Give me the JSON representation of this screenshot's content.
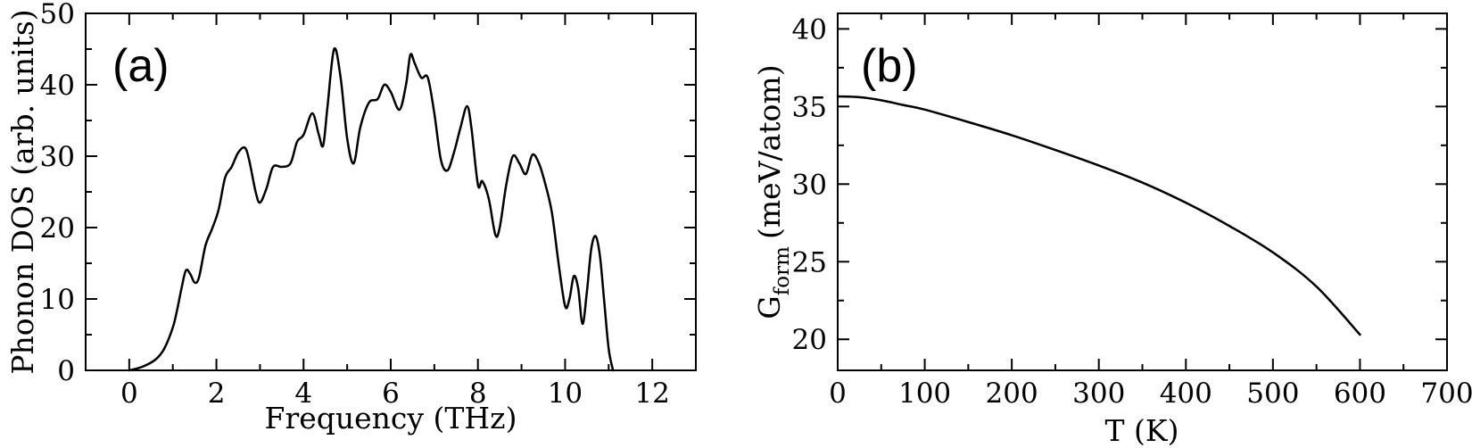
{
  "chart_data": [
    {
      "panel_label": "(a)",
      "type": "line",
      "xlabel": "Frequency (THz)",
      "ylabel": "Phonon DOS (arb. units)",
      "xlim": [
        -1,
        13
      ],
      "ylim": [
        0,
        50
      ],
      "x_ticks": [
        "0",
        "2",
        "4",
        "6",
        "8",
        "10",
        "12"
      ],
      "y_ticks": [
        "0",
        "10",
        "20",
        "30",
        "40",
        "50"
      ],
      "x_tick_values": [
        0,
        2,
        4,
        6,
        8,
        10,
        12
      ],
      "y_tick_values": [
        0,
        10,
        20,
        30,
        40,
        50
      ],
      "x_minor_step": 1,
      "y_minor_step": 5,
      "grid": false,
      "line_color": "#000000",
      "series": [
        {
          "x": [
            0.0,
            0.3,
            0.6,
            0.8,
            1.0,
            1.1,
            1.2,
            1.3,
            1.4,
            1.5,
            1.6,
            1.75,
            1.9,
            2.05,
            2.2,
            2.35,
            2.5,
            2.65,
            2.75,
            2.9,
            3.0,
            3.15,
            3.3,
            3.5,
            3.7,
            3.85,
            4.0,
            4.2,
            4.35,
            4.45,
            4.55,
            4.7,
            4.85,
            5.0,
            5.15,
            5.3,
            5.5,
            5.7,
            5.85,
            6.0,
            6.2,
            6.35,
            6.45,
            6.55,
            6.7,
            6.85,
            7.0,
            7.15,
            7.3,
            7.45,
            7.6,
            7.75,
            7.85,
            8.0,
            8.1,
            8.25,
            8.4,
            8.5,
            8.65,
            8.8,
            8.95,
            9.1,
            9.25,
            9.4,
            9.55,
            9.7,
            9.85,
            10.0,
            10.1,
            10.2,
            10.3,
            10.4,
            10.5,
            10.6,
            10.7,
            10.8,
            10.9,
            11.0,
            11.1
          ],
          "y": [
            0.0,
            0.5,
            1.5,
            3.0,
            6.0,
            8.5,
            11.5,
            14.0,
            13.5,
            12.3,
            13.0,
            17.5,
            19.8,
            22.5,
            27.0,
            28.5,
            30.5,
            31.2,
            29.5,
            25.0,
            23.5,
            25.5,
            28.5,
            28.5,
            29.0,
            32.0,
            33.0,
            36.0,
            33.0,
            31.5,
            37.0,
            45.0,
            41.0,
            32.5,
            29.0,
            34.0,
            37.5,
            38.0,
            40.0,
            39.0,
            36.5,
            40.0,
            44.2,
            43.0,
            41.0,
            41.0,
            36.0,
            29.5,
            28.0,
            30.5,
            34.0,
            37.0,
            34.0,
            26.0,
            26.5,
            24.0,
            19.0,
            20.0,
            26.0,
            30.0,
            29.0,
            27.5,
            30.2,
            29.0,
            26.0,
            22.0,
            15.0,
            9.0,
            10.0,
            13.2,
            11.5,
            6.5,
            11.0,
            17.0,
            18.8,
            16.0,
            9.5,
            3.0,
            0.0
          ]
        }
      ]
    },
    {
      "panel_label": "(b)",
      "type": "line",
      "xlabel": "T (K)",
      "ylabel_main": "G",
      "ylabel_sub": "form",
      "ylabel_unit": "(meV/atom)",
      "xlim": [
        0,
        700
      ],
      "ylim": [
        18,
        41
      ],
      "x_ticks": [
        "0",
        "100",
        "200",
        "300",
        "400",
        "500",
        "600",
        "700"
      ],
      "y_ticks": [
        "20",
        "25",
        "30",
        "35",
        "40"
      ],
      "x_tick_values": [
        0,
        100,
        200,
        300,
        400,
        500,
        600,
        700
      ],
      "y_tick_values": [
        20,
        25,
        30,
        35,
        40
      ],
      "x_minor_step": 50,
      "y_minor_step": 2.5,
      "grid": false,
      "line_color": "#000000",
      "series": [
        {
          "x": [
            0,
            25,
            50,
            75,
            100,
            150,
            200,
            250,
            300,
            350,
            400,
            450,
            500,
            550,
            600
          ],
          "y": [
            35.65,
            35.6,
            35.4,
            35.1,
            34.8,
            34.0,
            33.15,
            32.2,
            31.2,
            30.1,
            28.8,
            27.3,
            25.6,
            23.4,
            20.3
          ]
        }
      ]
    }
  ]
}
